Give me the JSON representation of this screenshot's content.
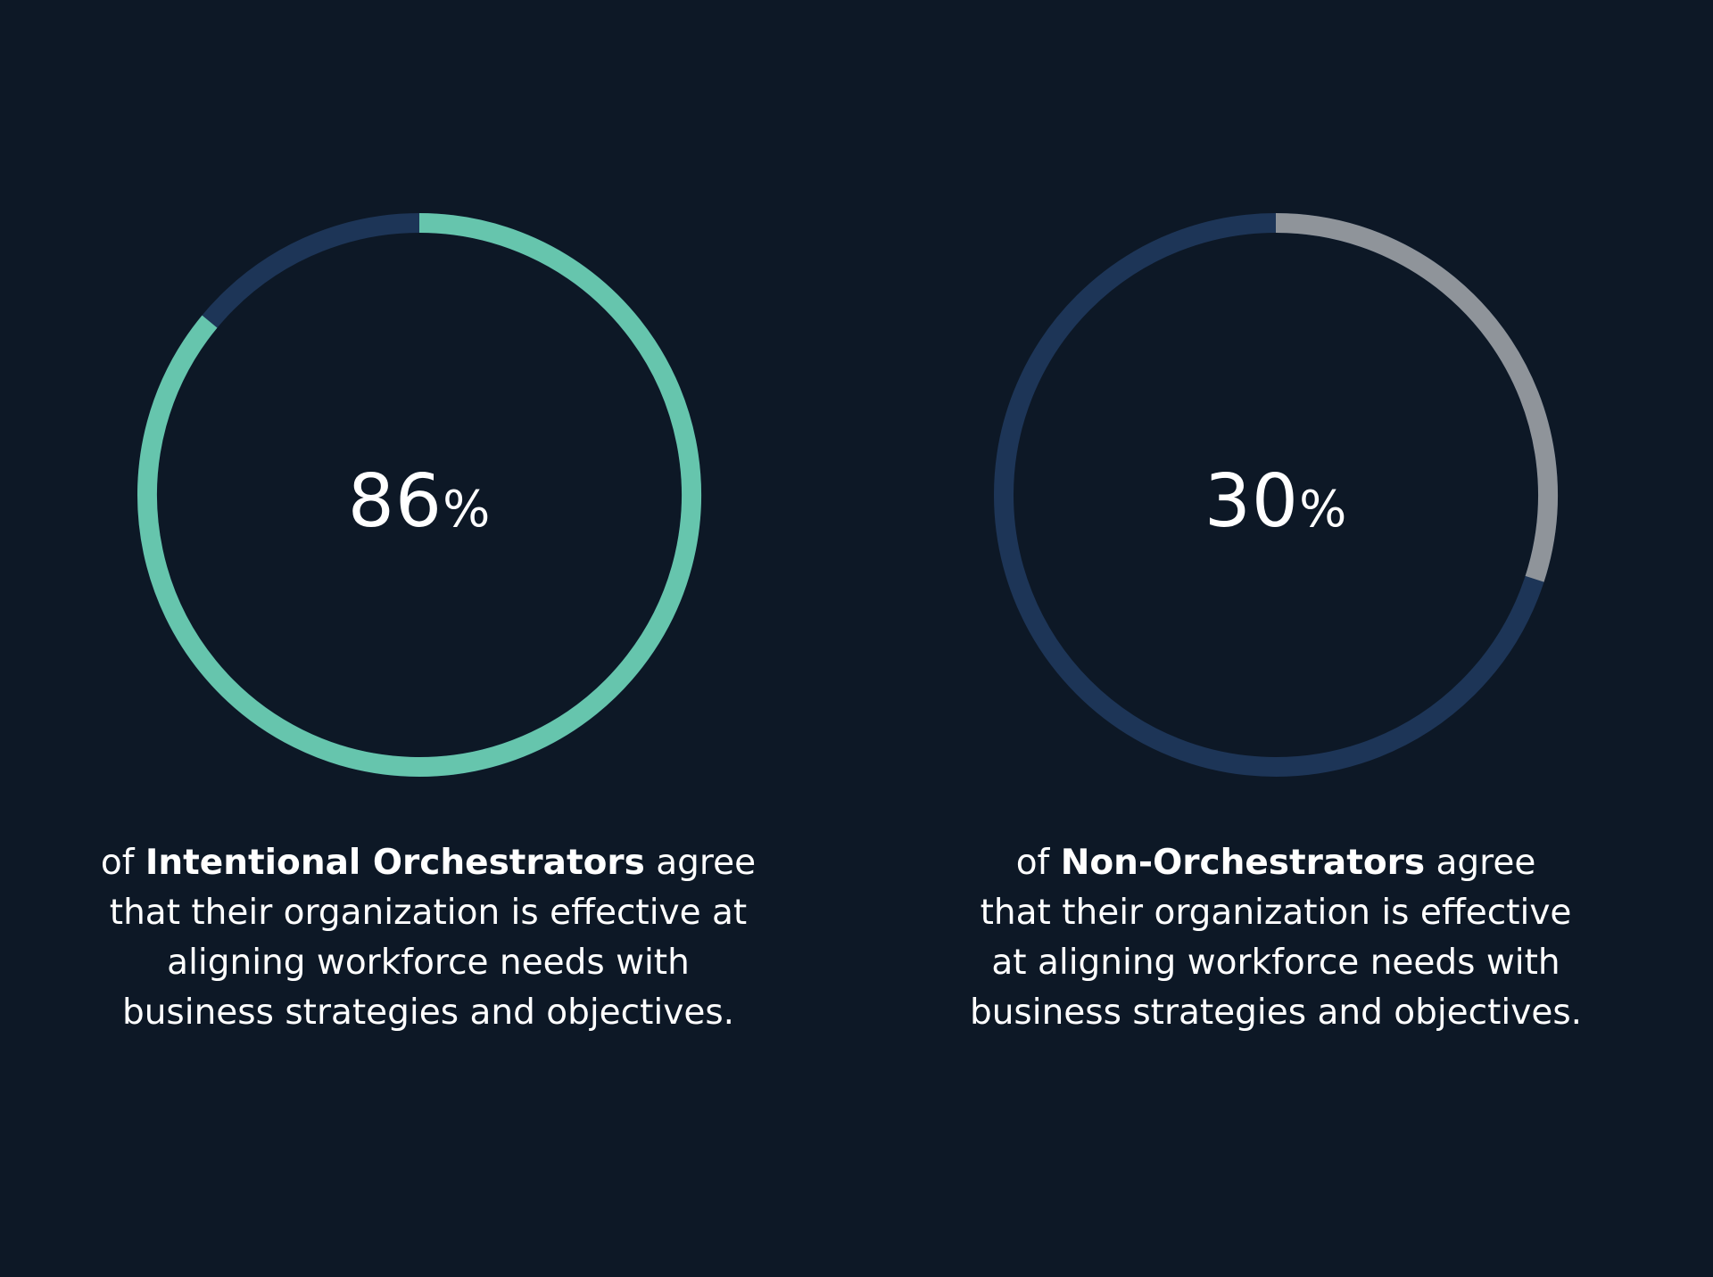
{
  "colors": {
    "background": "#0d1826",
    "track": "#1d3557",
    "left_accent": "#66c5ad",
    "right_accent": "#8f949a",
    "text": "#ffffff"
  },
  "chart_data": [
    {
      "type": "pie",
      "value": 86,
      "label_number": "86",
      "label_unit": "%",
      "caption": {
        "line1_prefix": "of ",
        "line1_bold": "Intentional Orchestrators",
        "line1_suffix": " agree",
        "line2": "that their organization is effective at",
        "line3": "aligning workforce needs with",
        "line4": "business strategies and objectives."
      },
      "accent_color": "#66c5ad",
      "track_color": "#1d3557"
    },
    {
      "type": "pie",
      "value": 30,
      "label_number": "30",
      "label_unit": "%",
      "caption": {
        "line1_prefix": "of ",
        "line1_bold": "Non-Orchestrators",
        "line1_suffix": " agree",
        "line2": "that their organization is effective",
        "line3": "at aligning workforce needs with",
        "line4": "business strategies and objectives."
      },
      "accent_color": "#8f949a",
      "track_color": "#1d3557"
    }
  ]
}
